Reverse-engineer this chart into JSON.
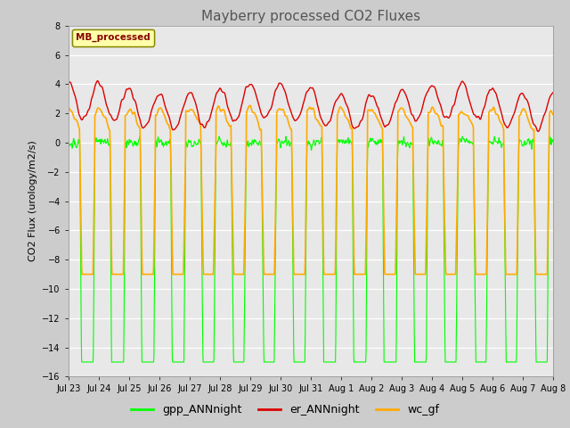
{
  "title": "Mayberry processed CO2 Fluxes",
  "ylabel": "CO2 Flux (urology/m2/s)",
  "ylim": [
    -16,
    8
  ],
  "yticks": [
    8,
    6,
    4,
    2,
    0,
    -2,
    -4,
    -6,
    -8,
    -10,
    -12,
    -14,
    -16
  ],
  "fig_bg_color": "#cccccc",
  "plot_bg_color": "#e8e8e8",
  "legend_label": "MB_processed",
  "legend_text_color": "#880000",
  "legend_box_color": "#ffffaa",
  "line_colors": {
    "gpp": "#00ff00",
    "er": "#dd0000",
    "wc": "#ffaa00"
  },
  "n_days": 16,
  "start_day": 23,
  "points_per_day": 96,
  "title_fontsize": 11,
  "tick_fontsize": 7,
  "label_fontsize": 8,
  "legend_fontsize": 9
}
